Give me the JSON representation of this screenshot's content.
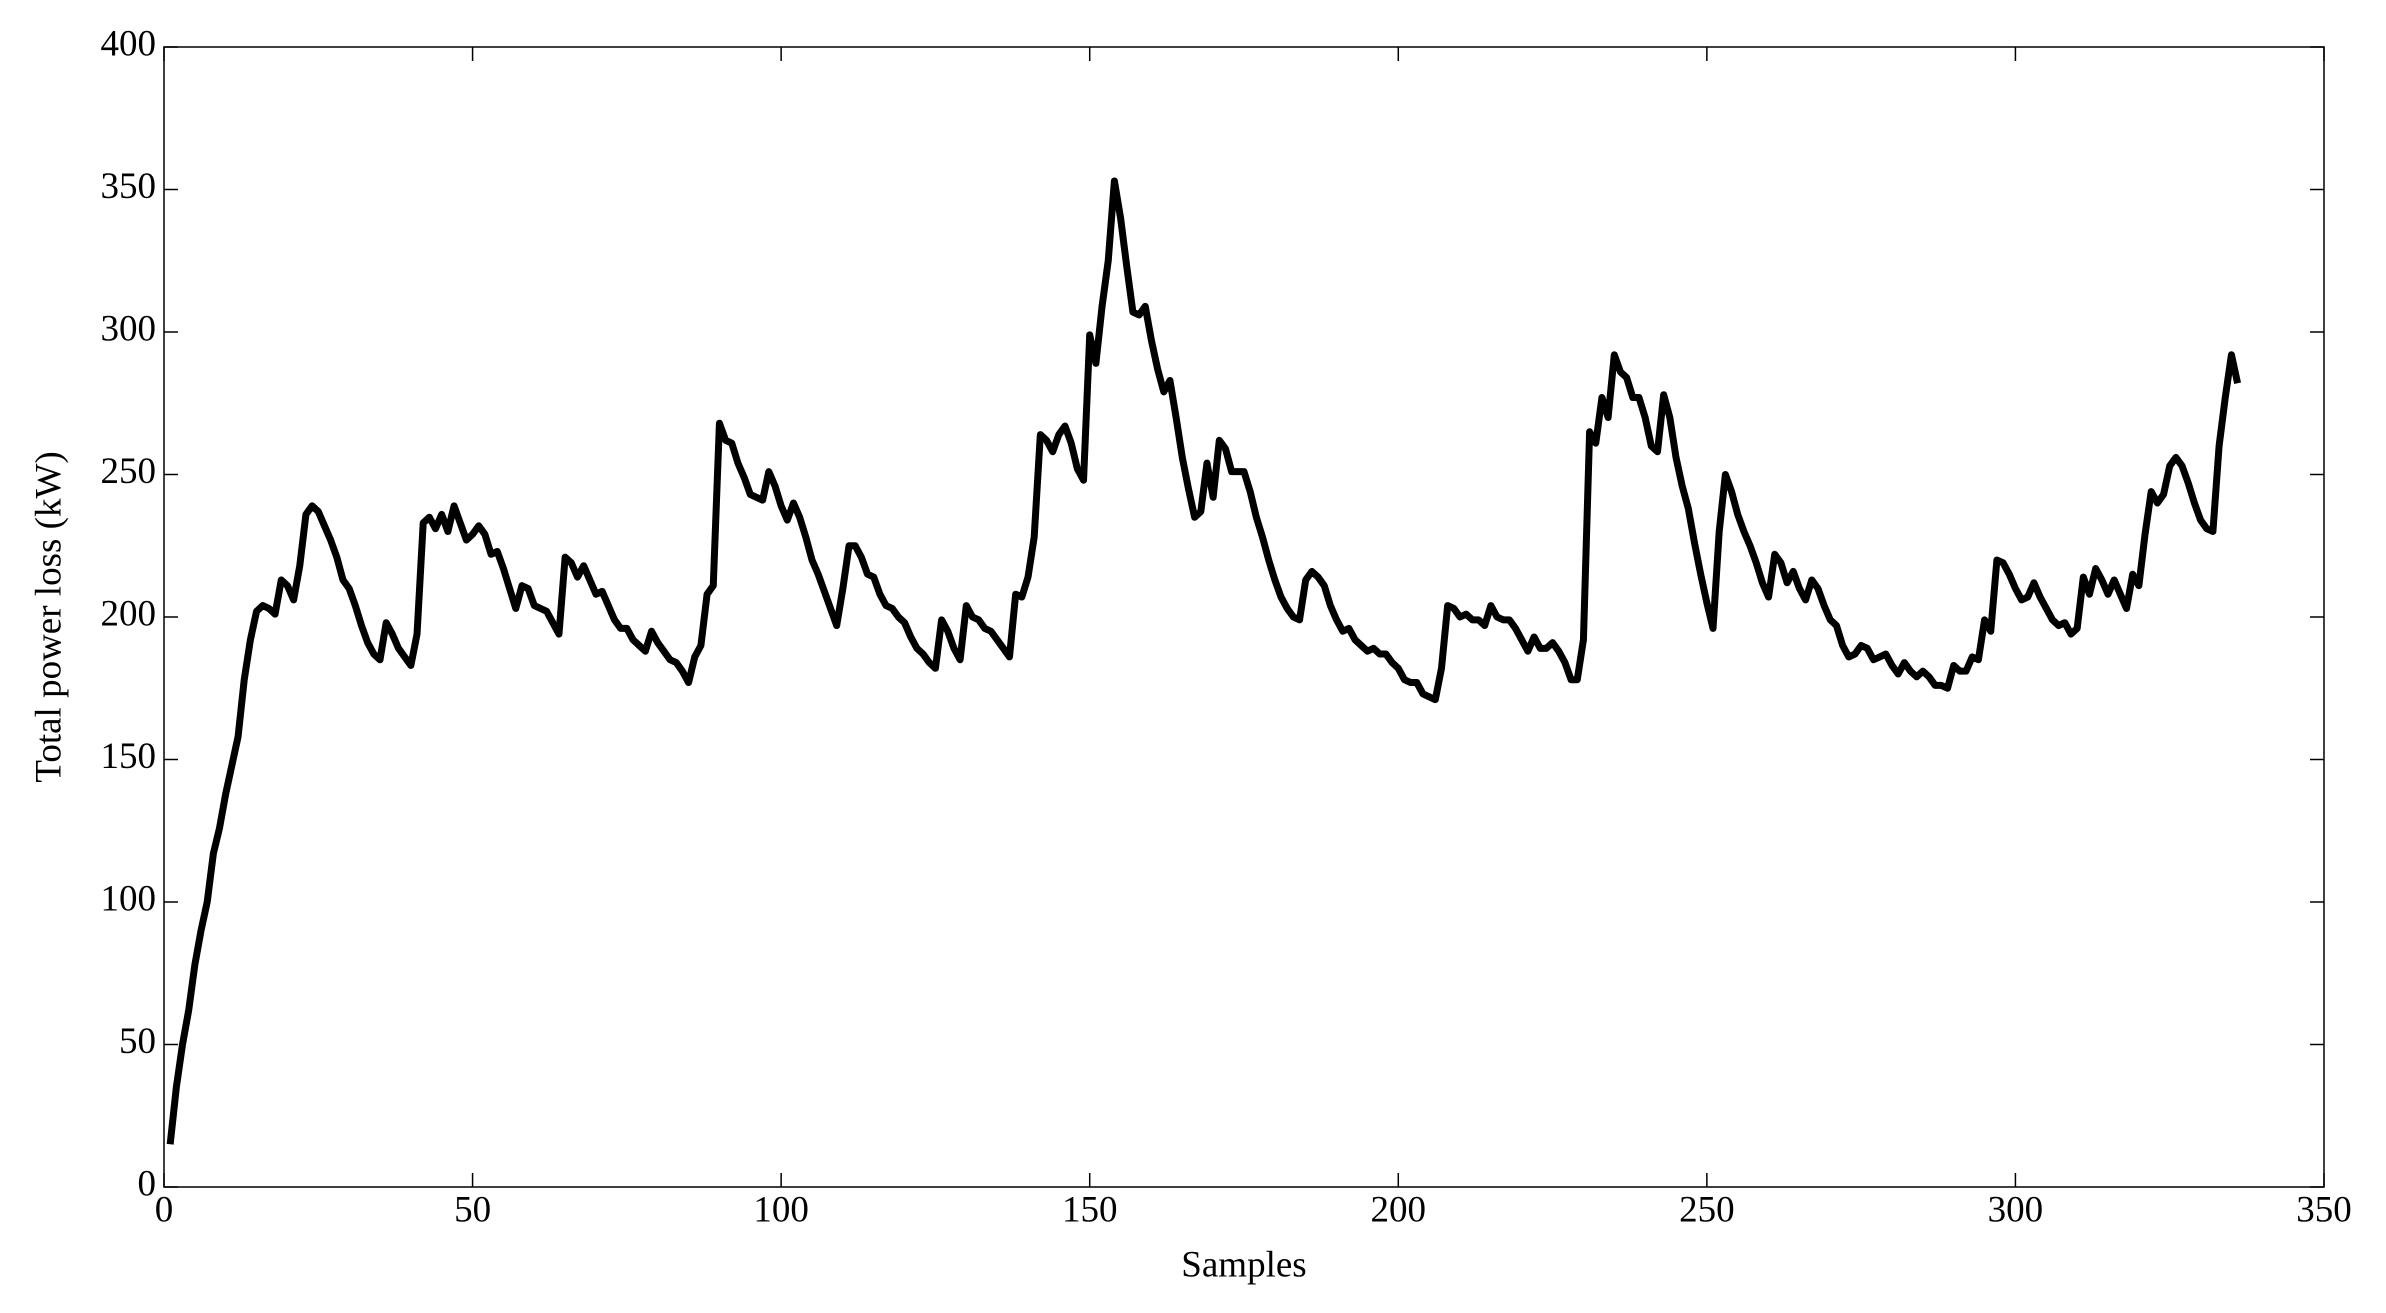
{
  "chart_data": {
    "type": "line",
    "xlabel": "Samples",
    "ylabel": "Total power loss (kW)",
    "color": "#000000",
    "xlim": [
      0,
      350
    ],
    "xticks": [
      0,
      50,
      100,
      150,
      200,
      250,
      300,
      350
    ],
    "ylim": [
      0,
      400
    ],
    "yticks": [
      0,
      50,
      100,
      150,
      200,
      250,
      300,
      350,
      400
    ],
    "x": [
      1,
      2,
      3,
      4,
      5,
      6,
      7,
      8,
      9,
      10,
      11,
      12,
      13,
      14,
      15,
      16,
      17,
      18,
      19,
      20,
      21,
      22,
      23,
      24,
      25,
      26,
      27,
      28,
      29,
      30,
      31,
      32,
      33,
      34,
      35,
      36,
      37,
      38,
      39,
      40,
      41,
      42,
      43,
      44,
      45,
      46,
      47,
      48,
      49,
      50,
      51,
      52,
      53,
      54,
      55,
      56,
      57,
      58,
      59,
      60,
      61,
      62,
      63,
      64,
      65,
      66,
      67,
      68,
      69,
      70,
      71,
      72,
      73,
      74,
      75,
      76,
      77,
      78,
      79,
      80,
      81,
      82,
      83,
      84,
      85,
      86,
      87,
      88,
      89,
      90,
      91,
      92,
      93,
      94,
      95,
      96,
      97,
      98,
      99,
      100,
      101,
      102,
      103,
      104,
      105,
      106,
      107,
      108,
      109,
      110,
      111,
      112,
      113,
      114,
      115,
      116,
      117,
      118,
      119,
      120,
      121,
      122,
      123,
      124,
      125,
      126,
      127,
      128,
      129,
      130,
      131,
      132,
      133,
      134,
      135,
      136,
      137,
      138,
      139,
      140,
      141,
      142,
      143,
      144,
      145,
      146,
      147,
      148,
      149,
      150,
      151,
      152,
      153,
      154,
      155,
      156,
      157,
      158,
      159,
      160,
      161,
      162,
      163,
      164,
      165,
      166,
      167,
      168,
      169,
      170,
      171,
      172,
      173,
      174,
      175,
      176,
      177,
      178,
      179,
      180,
      181,
      182,
      183,
      184,
      185,
      186,
      187,
      188,
      189,
      190,
      191,
      192,
      193,
      194,
      195,
      196,
      197,
      198,
      199,
      200,
      201,
      202,
      203,
      204,
      205,
      206,
      207,
      208,
      209,
      210,
      211,
      212,
      213,
      214,
      215,
      216,
      217,
      218,
      219,
      220,
      221,
      222,
      223,
      224,
      225,
      226,
      227,
      228,
      229,
      230,
      231,
      232,
      233,
      234,
      235,
      236,
      237,
      238,
      239,
      240,
      241,
      242,
      243,
      244,
      245,
      246,
      247,
      248,
      249,
      250,
      251,
      252,
      253,
      254,
      255,
      256,
      257,
      258,
      259,
      260,
      261,
      262,
      263,
      264,
      265,
      266,
      267,
      268,
      269,
      270,
      271,
      272,
      273,
      274,
      275,
      276,
      277,
      278,
      279,
      280,
      281,
      282,
      283,
      284,
      285,
      286,
      287,
      288,
      289,
      290,
      291,
      292,
      293,
      294,
      295,
      296,
      297,
      298,
      299,
      300,
      301,
      302,
      303,
      304,
      305,
      306,
      307,
      308,
      309,
      310,
      311,
      312,
      313,
      314,
      315,
      316,
      317,
      318,
      319,
      320,
      321,
      322,
      323,
      324,
      325,
      326,
      327,
      328,
      329,
      330,
      331,
      332,
      333,
      334,
      335,
      336
    ],
    "values": [
      15,
      35,
      50,
      62,
      78,
      90,
      100,
      117,
      126,
      138,
      148,
      158,
      178,
      192,
      202,
      204,
      203,
      201,
      213,
      211,
      206,
      218,
      236,
      239,
      237,
      232,
      227,
      221,
      213,
      210,
      204,
      197,
      191,
      187,
      185,
      198,
      194,
      189,
      186,
      183,
      194,
      233,
      235,
      231,
      236,
      230,
      239,
      233,
      227,
      229,
      232,
      229,
      222,
      223,
      217,
      210,
      203,
      211,
      210,
      204,
      203,
      202,
      198,
      194,
      221,
      219,
      214,
      218,
      213,
      208,
      209,
      204,
      199,
      196,
      196,
      192,
      190,
      188,
      195,
      191,
      188,
      185,
      184,
      181,
      177,
      186,
      190,
      208,
      211,
      268,
      262,
      261,
      254,
      249,
      243,
      242,
      241,
      251,
      246,
      239,
      234,
      240,
      235,
      228,
      220,
      215,
      209,
      203,
      197,
      210,
      225,
      225,
      221,
      215,
      214,
      208,
      204,
      203,
      200,
      198,
      193,
      189,
      187,
      184,
      182,
      199,
      195,
      189,
      185,
      204,
      200,
      199,
      196,
      195,
      192,
      189,
      186,
      208,
      207,
      214,
      228,
      264,
      262,
      258,
      264,
      267,
      261,
      252,
      248,
      299,
      289,
      309,
      325,
      353,
      340,
      323,
      307,
      306,
      309,
      297,
      287,
      279,
      283,
      270,
      256,
      245,
      235,
      237,
      254,
      242,
      262,
      259,
      251,
      251,
      251,
      244,
      235,
      228,
      220,
      213,
      207,
      203,
      200,
      199,
      213,
      216,
      214,
      211,
      204,
      199,
      195,
      196,
      192,
      190,
      188,
      189,
      187,
      187,
      184,
      182,
      178,
      177,
      177,
      173,
      172,
      171,
      182,
      204,
      203,
      200,
      201,
      199,
      199,
      197,
      204,
      200,
      199,
      199,
      196,
      192,
      188,
      193,
      189,
      189,
      191,
      188,
      184,
      178,
      178,
      192,
      265,
      261,
      277,
      270,
      292,
      286,
      284,
      277,
      277,
      270,
      260,
      258,
      278,
      270,
      256,
      246,
      238,
      226,
      215,
      205,
      196,
      230,
      250,
      244,
      236,
      230,
      225,
      219,
      212,
      207,
      222,
      219,
      212,
      216,
      210,
      206,
      213,
      210,
      204,
      199,
      197,
      190,
      186,
      187,
      190,
      189,
      185,
      186,
      187,
      183,
      180,
      184,
      181,
      179,
      181,
      179,
      176,
      176,
      175,
      183,
      181,
      181,
      186,
      185,
      199,
      195,
      220,
      219,
      215,
      210,
      206,
      207,
      212,
      207,
      203,
      199,
      197,
      198,
      194,
      196,
      214,
      208,
      217,
      213,
      208,
      213,
      208,
      203,
      215,
      211,
      229,
      244,
      240,
      243,
      253,
      256,
      253,
      247,
      240,
      234,
      231,
      230,
      260,
      277,
      292,
      282
    ]
  }
}
